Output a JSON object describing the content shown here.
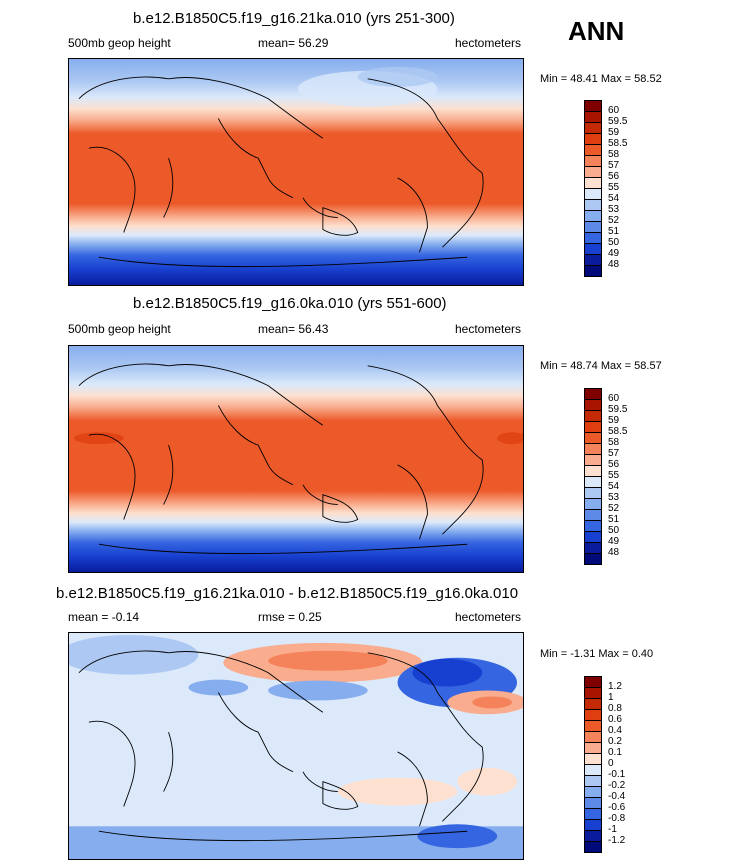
{
  "season_label": "ANN",
  "panels": [
    {
      "title": "b.e12.B1850C5.f19_g16.21ka.010 (yrs 251-300)",
      "left_label": "500mb geop height",
      "mean_label": "mean=  56.29",
      "units": "hectometers",
      "minmax": "Min =  48.41  Max =  58.52"
    },
    {
      "title": "b.e12.B1850C5.f19_g16.0ka.010 (yrs 551-600)",
      "left_label": "500mb geop height",
      "mean_label": "mean=  56.43",
      "units": "hectometers",
      "minmax": "Min =  48.74  Max =  58.57"
    },
    {
      "title": "b.e12.B1850C5.f19_g16.21ka.010 - b.e12.B1850C5.f19_g16.0ka.010",
      "left_label": "mean =  -0.14",
      "mean_label": "rmse =   0.25",
      "units": "hectometers",
      "minmax": "Min =  -1.31  Max =   0.40"
    }
  ],
  "chart_data": [
    {
      "type": "heatmap",
      "title": "b.e12.B1850C5.f19_g16.21ka.010 (yrs 251-300)",
      "variable": "500mb geop height",
      "units": "hectometers",
      "mean": 56.29,
      "min": 48.41,
      "max": 58.52,
      "colorbar_levels": [
        "60",
        "59.5",
        "59",
        "58.5",
        "58",
        "57",
        "56",
        "55",
        "54",
        "53",
        "52",
        "51",
        "50",
        "49",
        "48"
      ]
    },
    {
      "type": "heatmap",
      "title": "b.e12.B1850C5.f19_g16.0ka.010 (yrs 551-600)",
      "variable": "500mb geop height",
      "units": "hectometers",
      "mean": 56.43,
      "min": 48.74,
      "max": 58.57,
      "colorbar_levels": [
        "60",
        "59.5",
        "59",
        "58.5",
        "58",
        "57",
        "56",
        "55",
        "54",
        "53",
        "52",
        "51",
        "50",
        "49",
        "48"
      ]
    },
    {
      "type": "heatmap",
      "title": "b.e12.B1850C5.f19_g16.21ka.010 - b.e12.B1850C5.f19_g16.0ka.010",
      "variable": "difference",
      "units": "hectometers",
      "mean": -0.14,
      "rmse": 0.25,
      "min": -1.31,
      "max": 0.4,
      "colorbar_levels": [
        "1.2",
        "1",
        "0.8",
        "0.6",
        "0.4",
        "0.2",
        "0.1",
        "0",
        "-0.1",
        "-0.2",
        "-0.4",
        "-0.6",
        "-0.8",
        "-1",
        "-1.2"
      ]
    }
  ],
  "colors": {
    "scale": [
      "#7f0000",
      "#a81400",
      "#c42a08",
      "#de3e10",
      "#ec5a2a",
      "#f4825a",
      "#f9ad8e",
      "#fde0cf",
      "#dbe9fb",
      "#adc9f3",
      "#86adee",
      "#5c8ae6",
      "#3565e0",
      "#1840d0",
      "#0a1c9c",
      "#000a78"
    ]
  }
}
